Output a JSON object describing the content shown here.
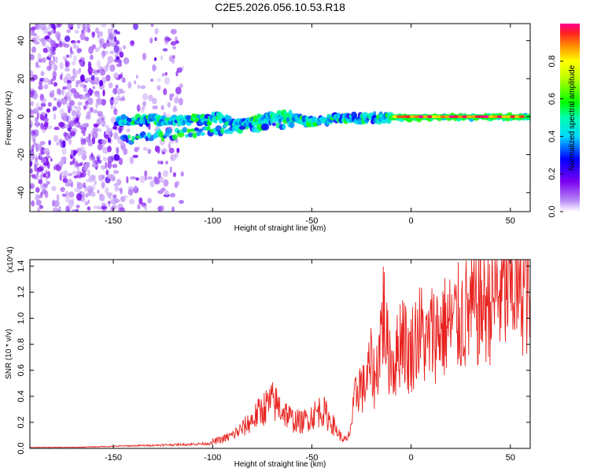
{
  "title": "C2E5.2026.056.10.53.R18",
  "colors": {
    "snr_line": "#e8231f",
    "axes": "#000000",
    "background": "#ffffff"
  },
  "chart_data": [
    {
      "type": "heatmap",
      "name": "spectrogram",
      "xlabel": "Height of straight line (km)",
      "ylabel": "Frequency (Hz)",
      "xlim": [
        -192,
        60
      ],
      "ylim": [
        -50,
        49
      ],
      "xticks": [
        -150,
        -100,
        -50,
        0,
        50
      ],
      "yticks": [
        -40,
        -20,
        0,
        20,
        40
      ],
      "colorbar": {
        "label": "Normalized spectral amplitude",
        "range": [
          0.0,
          1.0
        ],
        "ticks": [
          0.0,
          0.2,
          0.4,
          0.6,
          0.8
        ],
        "tick_labels": [
          "0.0",
          "0.2",
          "0.4",
          "0.6",
          "0.8"
        ]
      },
      "features": [
        {
          "name": "noise-scatter",
          "x_range": [
            -192,
            -115
          ],
          "freq_range": [
            -50,
            49
          ],
          "amplitude": 0.1
        },
        {
          "name": "upper-signal-band",
          "x_range": [
            -148,
            60
          ],
          "freq_start": -2,
          "freq_end": 0,
          "amplitude": 0.45
        },
        {
          "name": "lower-signal-band",
          "x_range": [
            -145,
            -60
          ],
          "freq_start": -12,
          "freq_end": -3,
          "amplitude": 0.3
        },
        {
          "name": "strong-core",
          "x_range": [
            -10,
            60
          ],
          "freq": 0,
          "amplitude": 0.95
        }
      ]
    },
    {
      "type": "line",
      "name": "snr",
      "xlabel": "Height of straight line (km)",
      "ylabel": "SNR (10 * v/v)",
      "y_scale_label": "(x10^4)",
      "xlim": [
        -192,
        60
      ],
      "ylim": [
        0.0,
        1.45
      ],
      "xticks": [
        -150,
        -100,
        -50,
        0,
        50
      ],
      "yticks": [
        0.0,
        0.2,
        0.4,
        0.6,
        0.8,
        1.0,
        1.2,
        1.4
      ],
      "ytick_labels": [
        "0.0",
        "0.2",
        "0.4",
        "0.6",
        "0.8",
        "1.0",
        "1.2",
        "1.4"
      ],
      "series": [
        {
          "name": "SNR",
          "x": [
            -192,
            -170,
            -150,
            -130,
            -110,
            -100,
            -95,
            -90,
            -85,
            -80,
            -75,
            -70,
            -65,
            -60,
            -55,
            -50,
            -45,
            -40,
            -35,
            -32,
            -30,
            -28,
            -26,
            -24,
            -22,
            -20,
            -18,
            -16,
            -14,
            -13,
            -12,
            -10,
            -8,
            -6,
            -4,
            -2,
            0,
            2,
            5,
            8,
            10,
            15,
            20,
            25,
            30,
            35,
            40,
            45,
            50,
            55,
            60
          ],
          "values": [
            0.01,
            0.01,
            0.02,
            0.03,
            0.04,
            0.05,
            0.07,
            0.1,
            0.15,
            0.22,
            0.3,
            0.36,
            0.3,
            0.22,
            0.2,
            0.25,
            0.3,
            0.2,
            0.08,
            0.06,
            0.2,
            0.4,
            0.5,
            0.45,
            0.55,
            0.65,
            0.5,
            0.8,
            1.05,
            0.95,
            0.75,
            0.7,
            0.65,
            0.8,
            0.95,
            0.7,
            0.75,
            0.85,
            0.9,
            0.78,
            0.88,
            0.92,
            0.95,
            1.0,
            1.05,
            1.1,
            1.15,
            1.2,
            1.25,
            1.3,
            1.2
          ],
          "color": "#e8231f"
        }
      ]
    }
  ]
}
